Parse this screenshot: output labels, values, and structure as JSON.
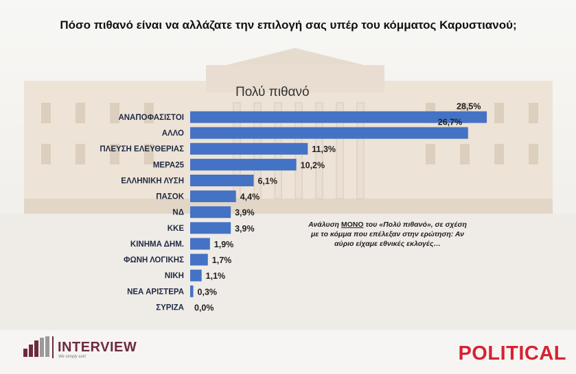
{
  "title": "Πόσο πιθανό είναι να αλλάζατε την επιλογή σας υπέρ του κόμματος Καρυστιανού;",
  "subtitle": "Πολύ πιθανό",
  "note": {
    "pre": "Ανάλυση ",
    "highlight": "ΜΟΝΟ",
    "post": " του «Πολύ πιθανό», σε σχέση με το κόμμα που επέλεξαν στην ερώτηση: Αν αύριο είχαμε εθνικές εκλογές…"
  },
  "logos": {
    "interview": "INTERVIEW",
    "interview_tag": "We simply ask!",
    "political": "POLITICAL"
  },
  "colors": {
    "bar": "#4472c4",
    "label": "#1f2a44",
    "political_red": "#d62231",
    "interview_maroon": "#6e2a3d"
  },
  "chart_data": {
    "type": "bar",
    "orientation": "horizontal",
    "categories": [
      "ΑΝΑΠΟΦΑΣΙΣΤΟΙ",
      "ΑΛΛΟ",
      "ΠΛΕΥΣΗ ΕΛΕΥΘΕΡΙΑΣ",
      "ΜΕΡΑ25",
      "ΕΛΛΗΝΙΚΗ ΛΥΣΗ",
      "ΠΑΣΟΚ",
      "ΝΔ",
      "ΚΚΕ",
      "ΚΙΝΗΜΑ ΔΗΜ.",
      "ΦΩΝΗ ΛΟΓΙΚΗΣ",
      "ΝΙΚΗ",
      "ΝΕΑ ΑΡΙΣΤΕΡΑ",
      "ΣΥΡΙΖΑ"
    ],
    "values": [
      28.5,
      26.7,
      11.3,
      10.2,
      6.1,
      4.4,
      3.9,
      3.9,
      1.9,
      1.7,
      1.1,
      0.3,
      0.0
    ],
    "value_labels": [
      "28,5%",
      "26,7%",
      "11,3%",
      "10,2%",
      "6,1%",
      "4,4%",
      "3,9%",
      "3,9%",
      "1,9%",
      "1,7%",
      "1,1%",
      "0,3%",
      "0,0%"
    ],
    "title": "Πολύ πιθανό",
    "xlabel": "",
    "ylabel": "",
    "grid": false,
    "legend": "none"
  }
}
